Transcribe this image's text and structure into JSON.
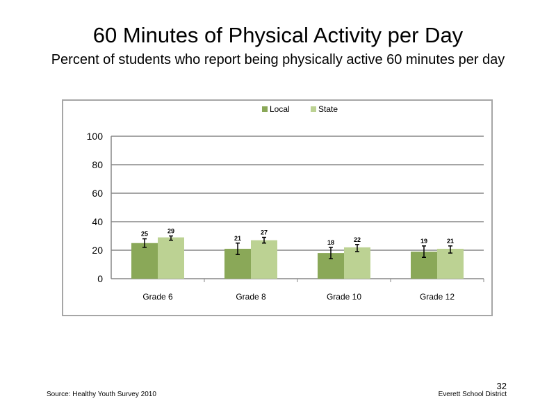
{
  "slide": {
    "title": "60 Minutes of Physical Activity per Day",
    "subtitle": "Percent of students who report being physically active 60 minutes per day",
    "source": "Source: Healthy Youth Survey 2010",
    "organization": "Everett School District",
    "page_number": "32"
  },
  "colors": {
    "local": "#8aa858",
    "state": "#bcd293",
    "gridline": "#878787",
    "axis": "#878787"
  },
  "chart_data": {
    "type": "bar",
    "categories": [
      "Grade 6",
      "Grade 8",
      "Grade 10",
      "Grade 12"
    ],
    "series": [
      {
        "name": "Local",
        "values": [
          25,
          21,
          18,
          19
        ],
        "error": [
          [
            22,
            28
          ],
          [
            17,
            25
          ],
          [
            14,
            22
          ],
          [
            15,
            23
          ]
        ]
      },
      {
        "name": "State",
        "values": [
          29,
          27,
          22,
          21
        ],
        "error": [
          [
            27,
            30
          ],
          [
            25,
            29
          ],
          [
            19,
            24
          ],
          [
            18,
            23
          ]
        ]
      }
    ],
    "ylim": [
      0,
      100
    ],
    "yticks": [
      0,
      20,
      40,
      60,
      80,
      100
    ],
    "grid": true,
    "legend_position": "top-center",
    "data_labels": true,
    "error_bars": true
  }
}
